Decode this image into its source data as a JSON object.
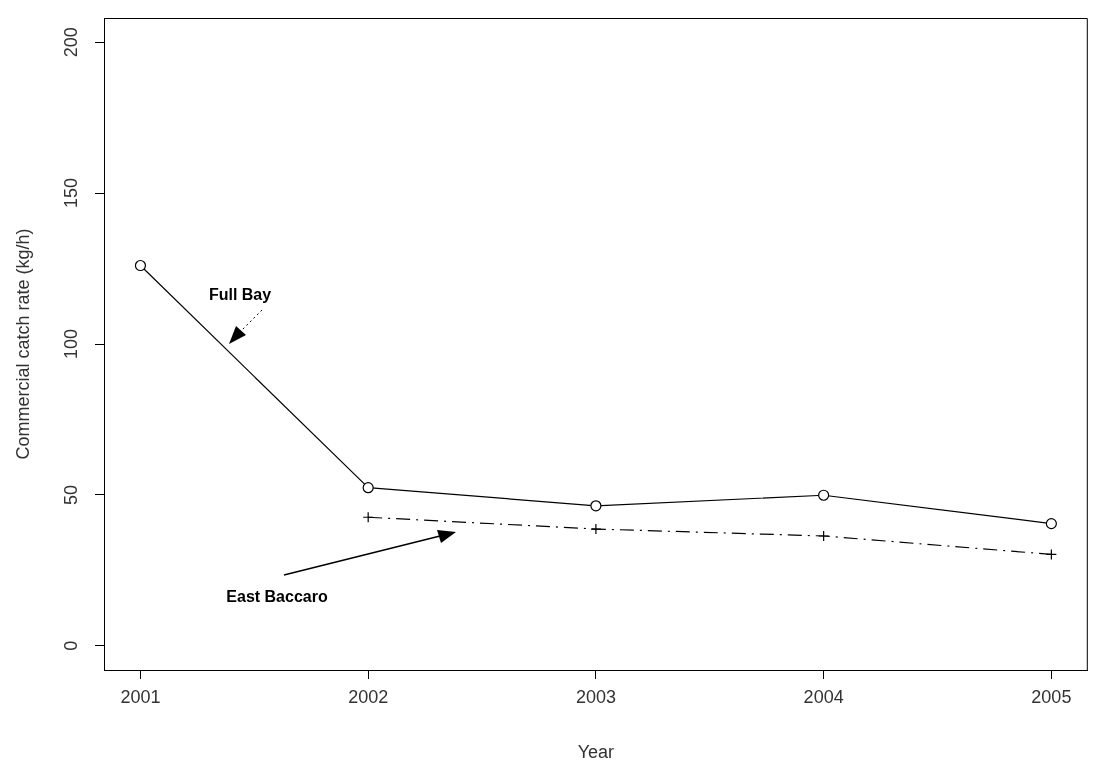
{
  "chart_data": {
    "type": "line",
    "xlabel": "Year",
    "ylabel": "Commercial catch rate (kg/h)",
    "x": [
      2001,
      2002,
      2003,
      2004,
      2005
    ],
    "series": [
      {
        "name": "Full Bay",
        "color": "#000000",
        "marker": "circle",
        "line_style": "solid",
        "values": [
          126,
          52.4,
          46.4,
          49.9,
          40.5
        ]
      },
      {
        "name": "East Baccaro",
        "color": "#000000",
        "marker": "cross",
        "line_style": "dashed",
        "values": [
          null,
          42.6,
          38.7,
          36.4,
          30.3
        ]
      }
    ],
    "xlim": [
      2000.84,
      2005.16
    ],
    "xticks": [
      2001,
      2002,
      2003,
      2004,
      2005
    ],
    "ylim": [
      -8,
      208
    ],
    "yticks": [
      0,
      50,
      100,
      150,
      200
    ],
    "grid": false,
    "legend": false
  }
}
